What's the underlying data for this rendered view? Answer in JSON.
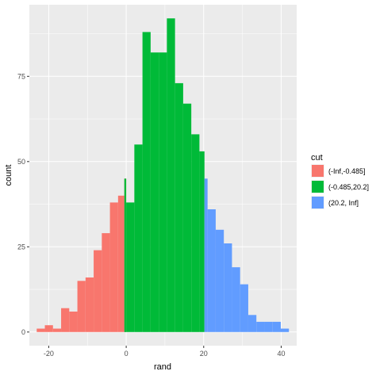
{
  "chart_data": {
    "type": "histogram",
    "title": "",
    "xlabel": "rand",
    "ylabel": "count",
    "xlim": [
      -25,
      44
    ],
    "ylim": [
      -4,
      96
    ],
    "x_ticks": [
      -20,
      0,
      20,
      40
    ],
    "x_tick_labels": [
      "-20",
      "0",
      "20",
      "40"
    ],
    "y_ticks": [
      0,
      25,
      50,
      75
    ],
    "y_tick_labels": [
      "0",
      "25",
      "50",
      "75"
    ],
    "bin_width": 2.1,
    "legend": {
      "title": "cut",
      "placement": "right",
      "entries": [
        {
          "label": "(-Inf,-0.485]",
          "color": "#F8766D"
        },
        {
          "label": "(-0.485,20.2]",
          "color": "#00BA38"
        },
        {
          "label": "(20.2, Inf]",
          "color": "#619CFF"
        }
      ]
    },
    "series": [
      {
        "color": "#F8766D",
        "bins": [
          {
            "x0": -23.1,
            "x1": -21.0,
            "count": 1
          },
          {
            "x0": -21.0,
            "x1": -18.9,
            "count": 2
          },
          {
            "x0": -18.9,
            "x1": -16.8,
            "count": 1
          },
          {
            "x0": -16.8,
            "x1": -14.7,
            "count": 7
          },
          {
            "x0": -14.7,
            "x1": -12.6,
            "count": 6
          },
          {
            "x0": -12.6,
            "x1": -10.5,
            "count": 15
          },
          {
            "x0": -10.5,
            "x1": -8.4,
            "count": 16
          },
          {
            "x0": -8.4,
            "x1": -6.3,
            "count": 24
          },
          {
            "x0": -6.3,
            "x1": -4.2,
            "count": 29
          },
          {
            "x0": -4.2,
            "x1": -2.1,
            "count": 38
          },
          {
            "x0": -2.1,
            "x1": -0.485,
            "count": 40
          },
          {
            "x0": -0.485,
            "x1": 0.0,
            "count": 45
          }
        ]
      },
      {
        "color": "#00BA38",
        "bins": [
          {
            "x0": -0.485,
            "x1": 0.0,
            "count": 45
          },
          {
            "x0": 0.0,
            "x1": 2.1,
            "count": 38
          },
          {
            "x0": 2.1,
            "x1": 4.2,
            "count": 55
          },
          {
            "x0": 4.2,
            "x1": 6.3,
            "count": 88
          },
          {
            "x0": 6.3,
            "x1": 8.4,
            "count": 82
          },
          {
            "x0": 8.4,
            "x1": 10.5,
            "count": 82
          },
          {
            "x0": 10.5,
            "x1": 12.6,
            "count": 92
          },
          {
            "x0": 12.6,
            "x1": 14.7,
            "count": 73
          },
          {
            "x0": 14.7,
            "x1": 16.8,
            "count": 67
          },
          {
            "x0": 16.8,
            "x1": 18.9,
            "count": 58
          },
          {
            "x0": 18.9,
            "x1": 20.2,
            "count": 53
          }
        ]
      },
      {
        "color": "#619CFF",
        "bins": [
          {
            "x0": 18.3,
            "x1": 20.2,
            "count": 0
          },
          {
            "x0": 20.2,
            "x1": 21.0,
            "count": 45
          },
          {
            "x0": 21.0,
            "x1": 23.1,
            "count": 36
          },
          {
            "x0": 23.1,
            "x1": 25.2,
            "count": 30
          },
          {
            "x0": 25.2,
            "x1": 27.3,
            "count": 26
          },
          {
            "x0": 27.3,
            "x1": 29.4,
            "count": 19
          },
          {
            "x0": 29.4,
            "x1": 31.5,
            "count": 14
          },
          {
            "x0": 31.5,
            "x1": 33.6,
            "count": 5
          },
          {
            "x0": 33.6,
            "x1": 35.7,
            "count": 3
          },
          {
            "x0": 35.7,
            "x1": 37.8,
            "count": 3
          },
          {
            "x0": 37.8,
            "x1": 39.9,
            "count": 3
          },
          {
            "x0": 39.9,
            "x1": 42.0,
            "count": 1
          }
        ]
      }
    ],
    "grid": true,
    "panel_background": "#EBEBEB",
    "grid_color": "#FFFFFF"
  }
}
